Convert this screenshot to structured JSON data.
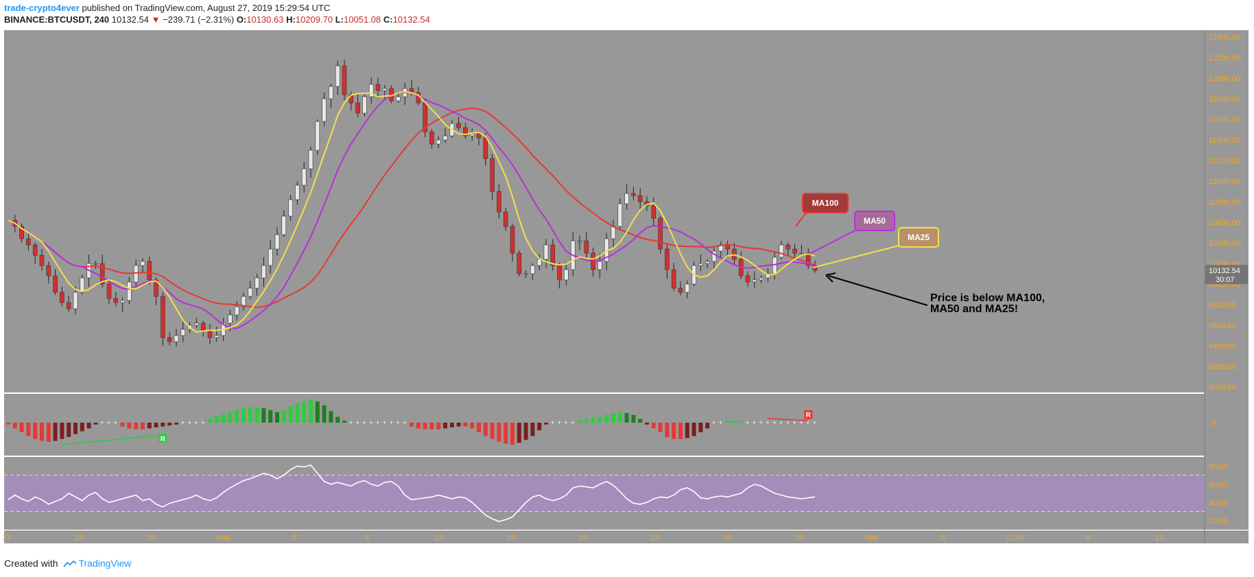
{
  "header": {
    "author": "trade-crypto4ever",
    "published_text": " published on TradingView.com, August 27, 2019 15:29:54 UTC",
    "symbol": "BINANCE:BTCUSDT, 240",
    "last_price": "10132.54",
    "change_arrow": "▼",
    "change": "−239.71 (−2.31%)",
    "open_label": "O:",
    "open": "10130.63",
    "high_label": "H:",
    "high": "10209.70",
    "low_label": "L:",
    "low": "10051.08",
    "close_label": "C:",
    "close": "10132.54"
  },
  "footer": {
    "created_with": "Created with",
    "brand": "TradingView"
  },
  "colors": {
    "background": "#ffffff",
    "pane": "#989898",
    "candle_up": "#e8e8e8",
    "candle_down": "#d32f2f",
    "ma100": "#e53935",
    "ma50": "#b82fd8",
    "ma25": "#f5e04a",
    "axis_text": "#f5a623",
    "hist_up": "#2ecc40",
    "hist_up_dark": "#1e7e1e",
    "hist_down": "#e53935",
    "hist_down_dark": "#7a2020",
    "rsi_band": "#a78bc4",
    "rsi_line": "#ffffff",
    "price_tag": "#757575"
  },
  "chart_data": {
    "type": "candlestick",
    "price_axis": {
      "ticks": [
        "12400.00",
        "12200.00",
        "12000.00",
        "11800.00",
        "11600.00",
        "11400.00",
        "11200.00",
        "11000.00",
        "10800.00",
        "10600.00",
        "10400.00",
        "10200.00",
        "10000.00",
        "9800.00",
        "9600.00",
        "9400.00",
        "9200.00",
        "9000.00"
      ],
      "ylim": [
        9000,
        12400
      ]
    },
    "time_axis": {
      "ticks": [
        "22",
        "25",
        "29",
        "Aug",
        "5",
        "8",
        "12",
        "15",
        "19",
        "22",
        "26",
        "29",
        "Sep",
        "5",
        "12:00",
        "9",
        "12"
      ]
    },
    "last_price_tag": "10132.54",
    "countdown_tag": "30:07",
    "series": [
      {
        "name": "MA100"
      },
      {
        "name": "MA50"
      },
      {
        "name": "MA25"
      }
    ],
    "annotations": [
      {
        "text": "MA100"
      },
      {
        "text": "MA50"
      },
      {
        "text": "MA25"
      },
      {
        "text": "Price is below MA100,\nMA50 and MA25!"
      }
    ],
    "price_path": [
      10620,
      10560,
      10440,
      10380,
      10280,
      10180,
      10080,
      9920,
      9820,
      9760,
      9920,
      10060,
      10200,
      10200,
      10000,
      9860,
      9820,
      9840,
      10020,
      10180,
      10220,
      10040,
      9880,
      9480,
      9440,
      9500,
      9560,
      9600,
      9620,
      9540,
      9480,
      9500,
      9620,
      9700,
      9780,
      9880,
      9960,
      10060,
      10180,
      10340,
      10480,
      10660,
      10820,
      10960,
      11120,
      11300,
      11580,
      11800,
      11920,
      12120,
      11840,
      11760,
      11660,
      11820,
      11940,
      11880,
      11900,
      11780,
      11820,
      11900,
      11860,
      11760,
      11480,
      11360,
      11400,
      11440,
      11560,
      11520,
      11440,
      11460,
      11420,
      11220,
      10900,
      10700,
      10560,
      10300,
      10100,
      10100,
      10180,
      10240,
      10380,
      10180,
      10040,
      10140,
      10420,
      10420,
      10300,
      10140,
      10220,
      10440,
      10560,
      10780,
      10880,
      10860,
      10800,
      10760,
      10640,
      10340,
      10140,
      9960,
      9920,
      10000,
      10180,
      10200,
      10220,
      10320,
      10380,
      10340,
      10240,
      10080,
      10020,
      10040,
      10060,
      10100,
      10260,
      10380,
      10340,
      10300,
      10300,
      10180,
      10132.54
    ],
    "indicator_pane": {
      "zero_label": "0",
      "hist": [
        -0.1,
        -0.3,
        -0.5,
        -0.7,
        -0.85,
        -0.95,
        -1.0,
        -0.95,
        -0.85,
        -0.75,
        -0.6,
        -0.45,
        -0.3,
        -0.1,
        0,
        0,
        0,
        -0.2,
        -0.3,
        -0.35,
        -0.35,
        -0.3,
        -0.25,
        -0.2,
        -0.15,
        -0.1,
        0,
        0,
        0,
        0,
        0.2,
        0.35,
        0.45,
        0.55,
        0.65,
        0.75,
        0.8,
        0.8,
        0.75,
        0.65,
        0.55,
        0.65,
        0.85,
        1.0,
        1.1,
        1.2,
        1.1,
        0.9,
        0.6,
        0.3,
        0.1,
        0,
        0,
        0,
        0,
        0,
        0,
        0,
        0,
        0,
        -0.2,
        -0.3,
        -0.35,
        -0.35,
        -0.35,
        -0.3,
        -0.25,
        -0.2,
        -0.2,
        -0.3,
        -0.5,
        -0.7,
        -0.85,
        -1.0,
        -1.1,
        -1.15,
        -1.05,
        -0.9,
        -0.7,
        -0.4,
        -0.1,
        0,
        0,
        0,
        0,
        0.1,
        0.2,
        0.25,
        0.3,
        0.4,
        0.5,
        0.55,
        0.5,
        0.4,
        0.2,
        -0.1,
        -0.3,
        -0.5,
        -0.75,
        -0.85,
        -0.85,
        -0.8,
        -0.7,
        -0.5,
        -0.3,
        0,
        0,
        0.1,
        0.1,
        0.1,
        0,
        0,
        0,
        0,
        0,
        0,
        0,
        0,
        0,
        0,
        0
      ],
      "markers": [
        {
          "text": "R"
        },
        {
          "text": "R"
        }
      ]
    },
    "rsi_pane": {
      "ticks": [
        "80.00",
        "60.00",
        "40.00",
        "20.00"
      ],
      "ylim": [
        10,
        90
      ],
      "upper": 70,
      "lower": 30,
      "values": [
        43,
        48,
        44,
        41,
        46,
        43,
        38,
        41,
        44,
        50,
        46,
        42,
        48,
        51,
        44,
        40,
        42,
        44,
        46,
        48,
        42,
        44,
        38,
        35,
        39,
        41,
        43,
        45,
        48,
        44,
        42,
        45,
        51,
        56,
        60,
        64,
        66,
        69,
        72,
        70,
        66,
        70,
        76,
        80,
        79,
        81,
        72,
        63,
        60,
        62,
        60,
        58,
        62,
        64,
        60,
        58,
        62,
        63,
        58,
        48,
        43,
        44,
        45,
        46,
        48,
        46,
        44,
        46,
        45,
        40,
        33,
        26,
        22,
        19,
        21,
        24,
        32,
        40,
        46,
        48,
        44,
        42,
        44,
        48,
        56,
        58,
        57,
        56,
        60,
        63,
        59,
        52,
        44,
        39,
        38,
        40,
        44,
        46,
        45,
        48,
        54,
        56,
        52,
        45,
        44,
        46,
        47,
        46,
        48,
        50,
        56,
        60,
        58,
        54,
        50,
        48,
        46,
        45,
        44,
        45,
        46
      ]
    }
  }
}
